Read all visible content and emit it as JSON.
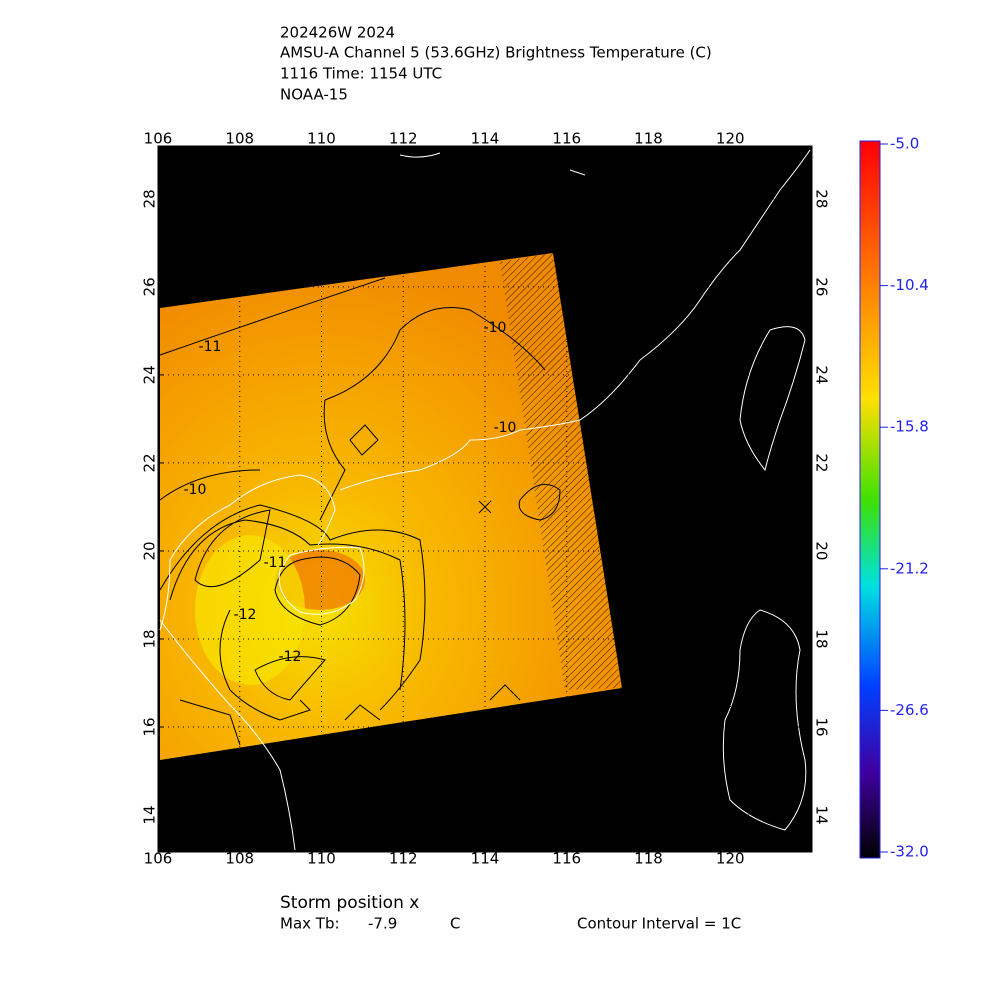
{
  "header": {
    "lines": [
      "202426W 2024",
      "AMSU-A Channel 5 (53.6GHz) Brightness Temperature (C)",
      "1116 Time: 1154 UTC",
      "NOAA-15"
    ]
  },
  "map": {
    "xlim": [
      106,
      122
    ],
    "ylim": [
      13.16,
      29.2
    ],
    "xticks": [
      106,
      108,
      110,
      112,
      114,
      116,
      118,
      120
    ],
    "yticks": [
      14,
      16,
      18,
      20,
      22,
      24,
      26,
      28
    ],
    "grid": true,
    "storm": {
      "lon": 114,
      "lat": 21
    },
    "contour_labels": [
      -11,
      -10,
      -10,
      -10,
      -11,
      -12,
      -12
    ]
  },
  "colorbar": {
    "lim": [
      -32,
      -5
    ],
    "ticks": [
      {
        "value": -5,
        "label": "-5.0"
      },
      {
        "value": -10.4,
        "label": "-10.4"
      },
      {
        "value": -15.8,
        "label": "-15.8"
      },
      {
        "value": -21.2,
        "label": "-21.2"
      },
      {
        "value": -26.6,
        "label": "-26.6"
      },
      {
        "value": -32,
        "label": "-32.0"
      }
    ]
  },
  "footer": {
    "storm_label": "Storm position x",
    "max_tb_label": "Max Tb:",
    "max_tb": -7.9,
    "max_tb_unit": "C",
    "contour_interval": "Contour Interval = 1C"
  }
}
